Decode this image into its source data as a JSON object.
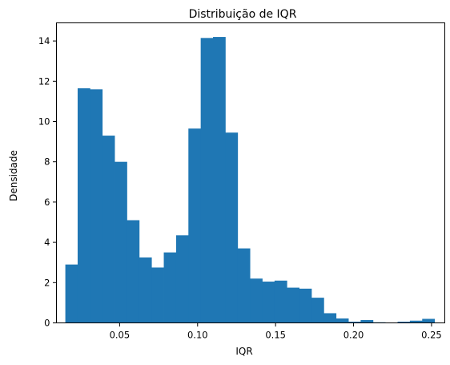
{
  "chart_data": {
    "type": "bar",
    "subtype": "histogram",
    "title": "Distribuição de IQR",
    "xlabel": "IQR",
    "ylabel": "Densidade",
    "xlim": [
      0.0095,
      0.2585
    ],
    "ylim": [
      0,
      14.9
    ],
    "xticks": [
      0.05,
      0.1,
      0.15,
      0.2,
      0.25
    ],
    "xtick_labels": [
      "0.05",
      "0.10",
      "0.15",
      "0.20",
      "0.25"
    ],
    "yticks": [
      0,
      2,
      4,
      6,
      8,
      10,
      12,
      14
    ],
    "ytick_labels": [
      "0",
      "2",
      "4",
      "6",
      "8",
      "10",
      "12",
      "14"
    ],
    "bin_start": 0.0152,
    "bin_width": 0.00789,
    "values": [
      2.9,
      11.65,
      11.6,
      9.3,
      8.0,
      5.1,
      3.25,
      2.75,
      3.5,
      4.35,
      9.65,
      14.15,
      14.2,
      9.45,
      3.7,
      2.2,
      2.05,
      2.1,
      1.75,
      1.7,
      1.25,
      0.48,
      0.22,
      0.06,
      0.14,
      0.03,
      0.0,
      0.06,
      0.11,
      0.2
    ],
    "bar_color": "#1f77b4",
    "grid": false
  }
}
